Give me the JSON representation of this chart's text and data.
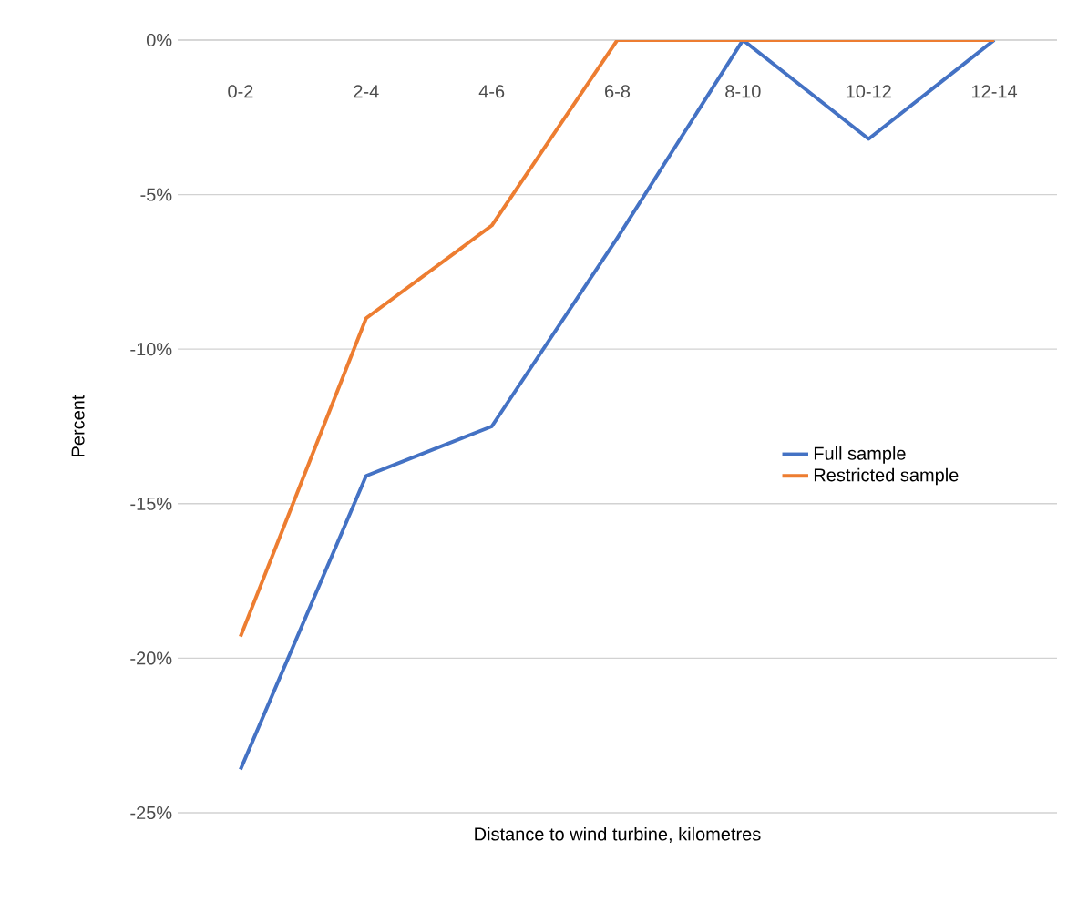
{
  "chart_data": {
    "type": "line",
    "xlabel": "Distance to wind turbine, kilometres",
    "ylabel": "Percent",
    "categories": [
      "0-2",
      "2-4",
      "4-6",
      "6-8",
      "8-10",
      "10-12",
      "12-14"
    ],
    "series": [
      {
        "name": "Full sample",
        "color": "#4472c4",
        "values": [
          -23.6,
          -14.1,
          -12.5,
          -6.4,
          0,
          -3.2,
          0
        ]
      },
      {
        "name": "Restricted sample",
        "color": "#ed7d31",
        "values": [
          -19.3,
          -9.0,
          -6.0,
          0,
          0,
          0,
          0
        ]
      }
    ],
    "ylim": [
      -25,
      0
    ],
    "yticks": [
      {
        "value": -25,
        "label": "-25%"
      },
      {
        "value": -20,
        "label": "-20%"
      },
      {
        "value": -15,
        "label": "-15%"
      },
      {
        "value": -10,
        "label": "-10%"
      },
      {
        "value": -5,
        "label": "-5%"
      },
      {
        "value": 0,
        "label": "0%"
      }
    ],
    "grid": "y",
    "legend": "right",
    "marker": "none",
    "line_style": "solid"
  }
}
